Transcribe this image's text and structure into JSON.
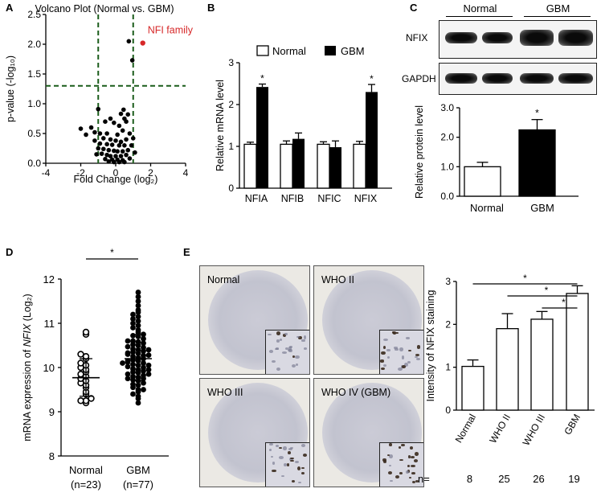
{
  "panels": {
    "A": {
      "label": "A"
    },
    "B": {
      "label": "B"
    },
    "C": {
      "label": "C"
    },
    "D": {
      "label": "D"
    },
    "E": {
      "label": "E"
    }
  },
  "colors": {
    "accent_red": "#d62728",
    "dash_green": "#1a5c1a",
    "black": "#000000"
  },
  "blot": {
    "groups": [
      "Normal",
      "GBM"
    ],
    "rows": [
      "NFIX",
      "GAPDH"
    ]
  },
  "tma": {
    "images": [
      {
        "label": "Normal",
        "intensity": 0.15
      },
      {
        "label": "WHO II",
        "intensity": 0.3
      },
      {
        "label": "WHO III",
        "intensity": 0.4
      },
      {
        "label": "WHO IV (GBM)",
        "intensity": 0.85
      }
    ]
  },
  "chart_data": [
    {
      "type": "scatter",
      "panel": "A",
      "title": "Volcano Plot (Normal vs. GBM)",
      "xlabel": "Fold Change (log₂)",
      "ylabel": "p-value (-log₁₀)",
      "xlim": [
        -4,
        4
      ],
      "ylim": [
        0,
        2.5
      ],
      "xticks": [
        -4,
        -2,
        0,
        2,
        4
      ],
      "yticks": [
        0.0,
        0.5,
        1.0,
        1.5,
        2.0,
        2.5
      ],
      "thresholds": {
        "x": [
          -1,
          1
        ],
        "y": 1.3
      },
      "highlight": {
        "x": 1.55,
        "y": 2.02,
        "label": "NFI family"
      },
      "points": [
        [
          0.75,
          2.05
        ],
        [
          0.95,
          1.73
        ],
        [
          -1.0,
          0.91
        ],
        [
          0.45,
          0.9
        ],
        [
          0.3,
          0.83
        ],
        [
          0.7,
          0.82
        ],
        [
          -0.3,
          0.75
        ],
        [
          0.5,
          0.75
        ],
        [
          -0.6,
          0.7
        ],
        [
          -0.1,
          0.68
        ],
        [
          0.6,
          0.7
        ],
        [
          0.2,
          0.63
        ],
        [
          -1.4,
          0.6
        ],
        [
          -2.0,
          0.58
        ],
        [
          -1.2,
          0.52
        ],
        [
          -0.9,
          0.5
        ],
        [
          -0.5,
          0.5
        ],
        [
          0.1,
          0.48
        ],
        [
          0.4,
          0.55
        ],
        [
          0.8,
          0.5
        ],
        [
          1.0,
          0.42
        ],
        [
          -1.7,
          0.48
        ],
        [
          -0.7,
          0.42
        ],
        [
          -0.3,
          0.4
        ],
        [
          0.6,
          0.4
        ],
        [
          -1.2,
          0.38
        ],
        [
          0.0,
          0.38
        ],
        [
          0.3,
          0.36
        ],
        [
          -0.9,
          0.33
        ],
        [
          -0.5,
          0.32
        ],
        [
          -0.2,
          0.31
        ],
        [
          0.2,
          0.3
        ],
        [
          0.5,
          0.3
        ],
        [
          0.9,
          0.3
        ],
        [
          -1.0,
          0.25
        ],
        [
          -0.7,
          0.24
        ],
        [
          -0.4,
          0.22
        ],
        [
          -0.1,
          0.21
        ],
        [
          0.1,
          0.2
        ],
        [
          0.4,
          0.2
        ],
        [
          0.7,
          0.22
        ],
        [
          -0.8,
          0.16
        ],
        [
          -0.5,
          0.14
        ],
        [
          -0.3,
          0.12
        ],
        [
          0.0,
          0.12
        ],
        [
          0.3,
          0.12
        ],
        [
          0.6,
          0.14
        ],
        [
          -0.6,
          0.07
        ],
        [
          -0.2,
          0.06
        ],
        [
          0.1,
          0.06
        ],
        [
          0.4,
          0.05
        ],
        [
          0.8,
          0.08
        ],
        [
          -0.4,
          0.03
        ],
        [
          0.2,
          0.02
        ],
        [
          0.5,
          0.02
        ],
        [
          -0.1,
          0.02
        ],
        [
          1.1,
          0.18
        ],
        [
          -1.1,
          0.15
        ]
      ]
    },
    {
      "type": "bar",
      "panel": "B",
      "ylabel": "Relative mRNA level",
      "categories": [
        "NFIA",
        "NFIB",
        "NFIC",
        "NFIX"
      ],
      "ylim": [
        0,
        3
      ],
      "yticks": [
        0,
        1,
        2,
        3
      ],
      "series": [
        {
          "name": "Normal",
          "values": [
            1.05,
            1.05,
            1.05,
            1.05
          ],
          "errors": [
            0.05,
            0.08,
            0.06,
            0.07
          ]
        },
        {
          "name": "GBM",
          "values": [
            2.42,
            1.18,
            0.98,
            2.3
          ],
          "errors": [
            0.07,
            0.14,
            0.15,
            0.18
          ]
        }
      ],
      "significant": [
        "NFIA",
        "NFIX"
      ],
      "annotation": "*"
    },
    {
      "type": "bar",
      "panel": "C",
      "ylabel": "Relative protein level",
      "categories": [
        "Normal",
        "GBM"
      ],
      "values": [
        1.0,
        2.25
      ],
      "errors": [
        0.15,
        0.35
      ],
      "ylim": [
        0,
        3
      ],
      "yticks": [
        0.0,
        1.0,
        2.0,
        3.0
      ],
      "annotation": "*"
    },
    {
      "type": "scatter",
      "panel": "D",
      "ylabel_prefix": "mRNA expression of ",
      "ylabel_gene": "NFIX",
      "ylabel_suffix": " (Log₂)",
      "ylim": [
        8,
        12
      ],
      "yticks": [
        8,
        9,
        10,
        11,
        12
      ],
      "groups": [
        {
          "name": "Normal",
          "n_label": "(n=23)",
          "mean": 9.77,
          "sd_low": 9.35,
          "sd_high": 10.2,
          "values": [
            9.2,
            9.25,
            9.25,
            9.3,
            9.4,
            9.45,
            9.55,
            9.6,
            9.65,
            9.7,
            9.75,
            9.8,
            9.85,
            9.9,
            9.95,
            10.0,
            10.05,
            10.1,
            10.2,
            10.25,
            10.3,
            10.75,
            10.8
          ]
        },
        {
          "name": "GBM",
          "n_label": "(n=77)",
          "mean": 10.2,
          "sd_low": 9.7,
          "sd_high": 10.75,
          "values": [
            9.2,
            9.3,
            9.35,
            9.4,
            9.45,
            9.5,
            9.55,
            9.6,
            9.62,
            9.65,
            9.7,
            9.72,
            9.75,
            9.78,
            9.8,
            9.82,
            9.85,
            9.88,
            9.9,
            9.92,
            9.95,
            9.97,
            10.0,
            10.02,
            10.05,
            10.07,
            10.1,
            10.12,
            10.15,
            10.17,
            10.2,
            10.22,
            10.25,
            10.27,
            10.3,
            10.32,
            10.35,
            10.37,
            10.4,
            10.42,
            10.45,
            10.47,
            10.5,
            10.52,
            10.55,
            10.58,
            10.6,
            10.65,
            10.7,
            10.72,
            10.75,
            10.8,
            10.85,
            10.9,
            10.95,
            11.0,
            11.05,
            11.1,
            11.15,
            11.2,
            11.25,
            11.3,
            11.4,
            11.5,
            11.6,
            11.7,
            9.5,
            9.85,
            10.05,
            10.28,
            10.4,
            10.15,
            9.95,
            10.6,
            9.75,
            10.33,
            10.1
          ]
        }
      ],
      "annotation": "*"
    },
    {
      "type": "bar",
      "panel": "E",
      "ylabel": "Intensity of NFIX staining",
      "categories": [
        "Normal",
        "WHO II",
        "WHO III",
        "GBM"
      ],
      "values": [
        1.02,
        1.9,
        2.12,
        2.72
      ],
      "errors": [
        0.15,
        0.35,
        0.18,
        0.18
      ],
      "ylim": [
        0,
        3
      ],
      "yticks": [
        0,
        1,
        2,
        3
      ],
      "n_prefix": "n=",
      "n_values": [
        "8",
        "25",
        "26",
        "19"
      ],
      "annotation": "*"
    }
  ]
}
